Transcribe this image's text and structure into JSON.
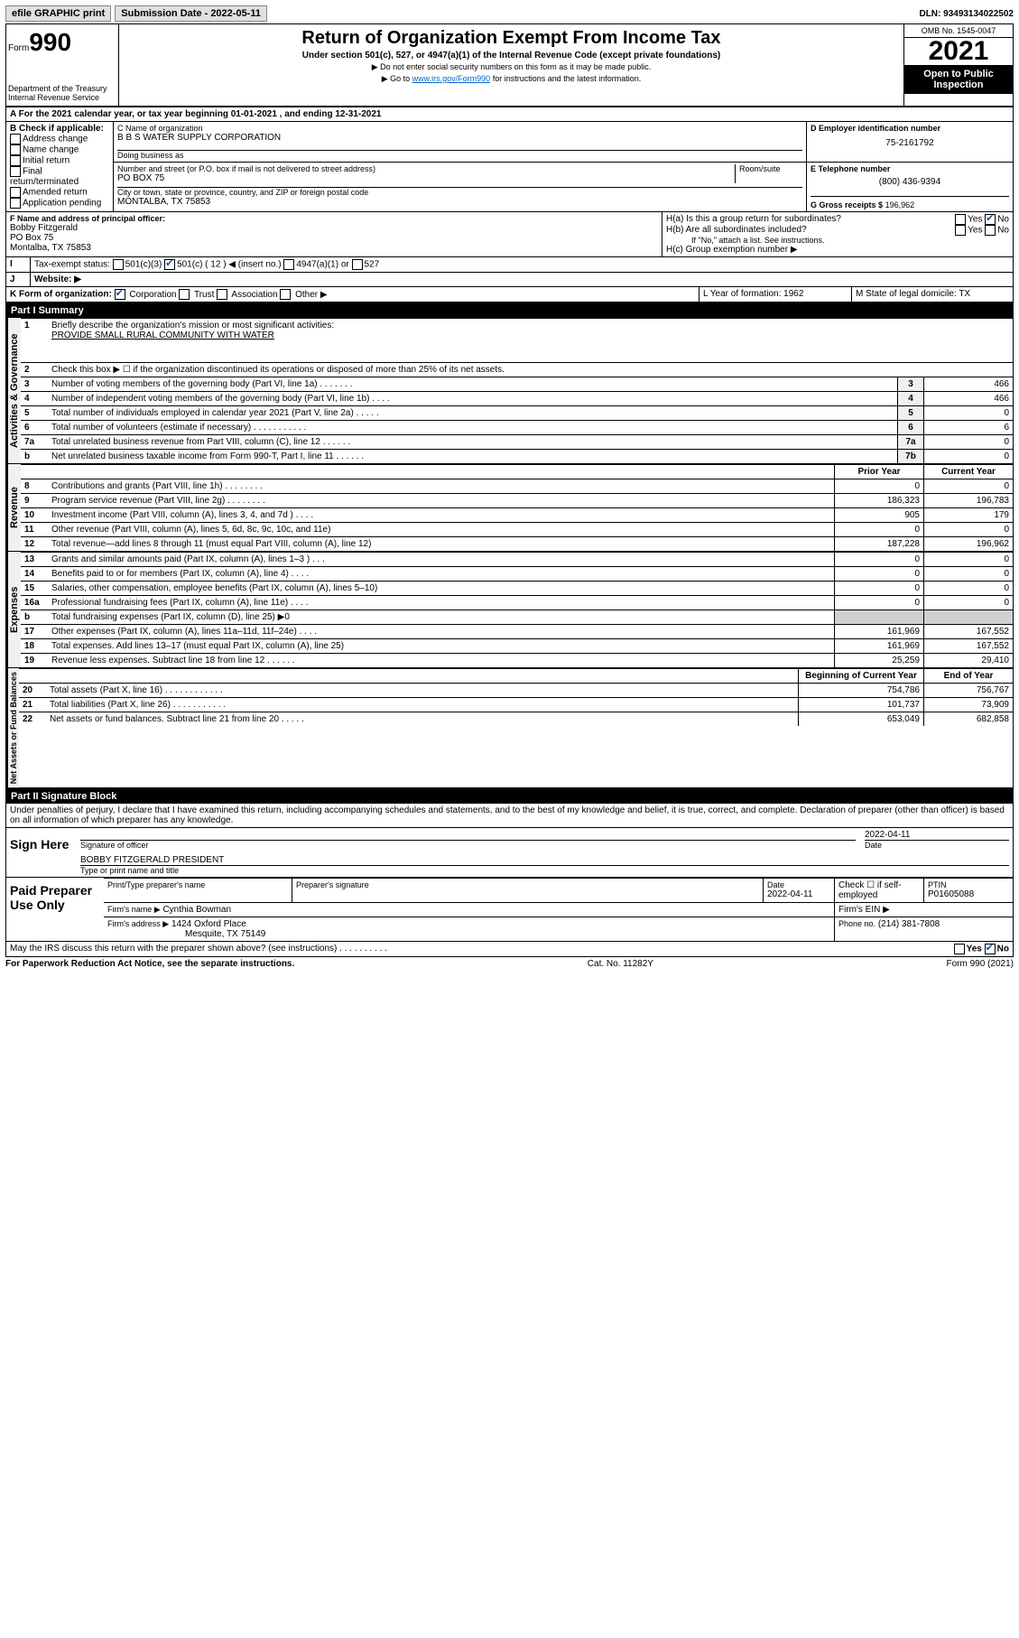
{
  "topbar": {
    "efile": "efile GRAPHIC print",
    "subdate_lbl": "Submission Date - 2022-05-11",
    "dln": "DLN: 93493134022502"
  },
  "header": {
    "form_word": "Form",
    "form_num": "990",
    "dept": "Department of the Treasury\nInternal Revenue Service",
    "title": "Return of Organization Exempt From Income Tax",
    "sub": "Under section 501(c), 527, or 4947(a)(1) of the Internal Revenue Code (except private foundations)",
    "note1": "▶ Do not enter social security numbers on this form as it may be made public.",
    "note2_pre": "▶ Go to ",
    "note2_link": "www.irs.gov/Form990",
    "note2_post": " for instructions and the latest information.",
    "omb": "OMB No. 1545-0047",
    "year": "2021",
    "open": "Open to Public Inspection"
  },
  "A": {
    "line": "For the 2021 calendar year, or tax year beginning 01-01-2021  , and ending 12-31-2021"
  },
  "B": {
    "lbl": "B Check if applicable:",
    "opts": [
      "Address change",
      "Name change",
      "Initial return",
      "Final return/terminated",
      "Amended return",
      "Application pending"
    ]
  },
  "C": {
    "name_lbl": "C Name of organization",
    "name": "B B S WATER SUPPLY CORPORATION",
    "dba_lbl": "Doing business as",
    "street_lbl": "Number and street (or P.O. box if mail is not delivered to street address)",
    "room_lbl": "Room/suite",
    "street": "PO BOX 75",
    "city_lbl": "City or town, state or province, country, and ZIP or foreign postal code",
    "city": "MONTALBA, TX  75853"
  },
  "D": {
    "lbl": "D Employer identification number",
    "val": "75-2161792"
  },
  "E": {
    "lbl": "E Telephone number",
    "val": "(800) 436-9394"
  },
  "G": {
    "lbl": "G Gross receipts $",
    "val": "196,962"
  },
  "F": {
    "lbl": "F  Name and address of principal officer:",
    "name": "Bobby Fitzgerald",
    "addr1": "PO Box 75",
    "addr2": "Montalba, TX  75853"
  },
  "H": {
    "a": "H(a)  Is this a group return for subordinates?",
    "b": "H(b)  Are all subordinates included?",
    "b_note": "If \"No,\" attach a list. See instructions.",
    "c": "H(c)  Group exemption number ▶"
  },
  "I": {
    "lbl": "Tax-exempt status:",
    "c12": "501(c) ( 12 ) ◀ (insert no.)"
  },
  "J": {
    "lbl": "Website: ▶"
  },
  "K": {
    "lbl": "K Form of organization:",
    "opts": [
      "Corporation",
      "Trust",
      "Association",
      "Other ▶"
    ]
  },
  "L": {
    "lbl": "L Year of formation: 1962"
  },
  "M": {
    "lbl": "M State of legal domicile: TX"
  },
  "part1": {
    "hdr": "Part I      Summary"
  },
  "summary": {
    "q1": "Briefly describe the organization's mission or most significant activities:",
    "q1v": "PROVIDE SMALL RURAL COMMUNITY WITH WATER",
    "q2": "Check this box ▶ ☐ if the organization discontinued its operations or disposed of more than 25% of its net assets.",
    "rows_gov": [
      {
        "n": "3",
        "t": "Number of voting members of the governing body (Part VI, line 1a)  .  .  .  .  .  .  .",
        "ln": "3",
        "v": "466"
      },
      {
        "n": "4",
        "t": "Number of independent voting members of the governing body (Part VI, line 1b)  .  .  .  .",
        "ln": "4",
        "v": "466"
      },
      {
        "n": "5",
        "t": "Total number of individuals employed in calendar year 2021 (Part V, line 2a)  .  .  .  .  .",
        "ln": "5",
        "v": "0"
      },
      {
        "n": "6",
        "t": "Total number of volunteers (estimate if necessary)  .  .  .  .  .  .  .  .  .  .  .",
        "ln": "6",
        "v": "6"
      },
      {
        "n": "7a",
        "t": "Total unrelated business revenue from Part VIII, column (C), line 12  .  .  .  .  .  .",
        "ln": "7a",
        "v": "0"
      },
      {
        "n": "b",
        "t": "Net unrelated business taxable income from Form 990-T, Part I, line 11  .  .  .  .  .  .",
        "ln": "7b",
        "v": "0"
      }
    ],
    "colhdr_prior": "Prior Year",
    "colhdr_curr": "Current Year",
    "rows_rev": [
      {
        "n": "8",
        "t": "Contributions and grants (Part VIII, line 1h)  .  .  .  .  .  .  .  .",
        "p": "0",
        "c": "0"
      },
      {
        "n": "9",
        "t": "Program service revenue (Part VIII, line 2g)  .  .  .  .  .  .  .  .",
        "p": "186,323",
        "c": "196,783"
      },
      {
        "n": "10",
        "t": "Investment income (Part VIII, column (A), lines 3, 4, and 7d )  .  .  .  .",
        "p": "905",
        "c": "179"
      },
      {
        "n": "11",
        "t": "Other revenue (Part VIII, column (A), lines 5, 6d, 8c, 9c, 10c, and 11e)",
        "p": "0",
        "c": "0"
      },
      {
        "n": "12",
        "t": "Total revenue—add lines 8 through 11 (must equal Part VIII, column (A), line 12)",
        "p": "187,228",
        "c": "196,962"
      }
    ],
    "rows_exp": [
      {
        "n": "13",
        "t": "Grants and similar amounts paid (Part IX, column (A), lines 1–3 )  .  .  .",
        "p": "0",
        "c": "0"
      },
      {
        "n": "14",
        "t": "Benefits paid to or for members (Part IX, column (A), line 4)  .  .  .  .",
        "p": "0",
        "c": "0"
      },
      {
        "n": "15",
        "t": "Salaries, other compensation, employee benefits (Part IX, column (A), lines 5–10)",
        "p": "0",
        "c": "0"
      },
      {
        "n": "16a",
        "t": "Professional fundraising fees (Part IX, column (A), line 11e)  .  .  .  .",
        "p": "0",
        "c": "0"
      },
      {
        "n": "b",
        "t": "Total fundraising expenses (Part IX, column (D), line 25) ▶0",
        "p": "",
        "c": "",
        "shade": true
      },
      {
        "n": "17",
        "t": "Other expenses (Part IX, column (A), lines 11a–11d, 11f–24e)  .  .  .  .",
        "p": "161,969",
        "c": "167,552"
      },
      {
        "n": "18",
        "t": "Total expenses. Add lines 13–17 (must equal Part IX, column (A), line 25)",
        "p": "161,969",
        "c": "167,552"
      },
      {
        "n": "19",
        "t": "Revenue less expenses. Subtract line 18 from line 12  .  .  .  .  .  .",
        "p": "25,259",
        "c": "29,410"
      }
    ],
    "colhdr_beg": "Beginning of Current Year",
    "colhdr_end": "End of Year",
    "rows_net": [
      {
        "n": "20",
        "t": "Total assets (Part X, line 16)  .  .  .  .  .  .  .  .  .  .  .  .",
        "p": "754,786",
        "c": "756,767"
      },
      {
        "n": "21",
        "t": "Total liabilities (Part X, line 26)  .  .  .  .  .  .  .  .  .  .  .",
        "p": "101,737",
        "c": "73,909"
      },
      {
        "n": "22",
        "t": "Net assets or fund balances. Subtract line 21 from line 20  .  .  .  .  .",
        "p": "653,049",
        "c": "682,858"
      }
    ]
  },
  "part2": {
    "hdr": "Part II     Signature Block"
  },
  "sig": {
    "decl": "Under penalties of perjury, I declare that I have examined this return, including accompanying schedules and statements, and to the best of my knowledge and belief, it is true, correct, and complete. Declaration of preparer (other than officer) is based on all information of which preparer has any knowledge.",
    "here": "Sign Here",
    "sig_lbl": "Signature of officer",
    "date_lbl": "Date",
    "date": "2022-04-11",
    "name": "BOBBY FITZGERALD  PRESIDENT",
    "name_lbl": "Type or print name and title"
  },
  "paid": {
    "title": "Paid Preparer Use Only",
    "c1": "Print/Type preparer's name",
    "c2": "Preparer's signature",
    "c3": "Date",
    "c3v": "2022-04-11",
    "c4": "Check ☐ if self-employed",
    "c5": "PTIN",
    "c5v": "P01605088",
    "firm_lbl": "Firm's name   ▶",
    "firm": "Cynthia Bowman",
    "ein_lbl": "Firm's EIN ▶",
    "addr_lbl": "Firm's address ▶",
    "addr1": "1424 Oxford Place",
    "addr2": "Mesquite, TX  75149",
    "phone_lbl": "Phone no.",
    "phone": "(214) 381-7808"
  },
  "bottom": {
    "q": "May the IRS discuss this return with the preparer shown above? (see instructions)  .  .  .  .  .  .  .  .  .  .",
    "yes": "Yes",
    "no": "No",
    "pra": "For Paperwork Reduction Act Notice, see the separate instructions.",
    "cat": "Cat. No. 11282Y",
    "form": "Form 990 (2021)"
  },
  "labels": {
    "vgov": "Activities & Governance",
    "vrev": "Revenue",
    "vexp": "Expenses",
    "vnet": "Net Assets or Fund Balances",
    "yes": "Yes",
    "no": "No",
    "501c3": "501(c)(3)",
    "4947": "4947(a)(1) or",
    "527": "527"
  }
}
